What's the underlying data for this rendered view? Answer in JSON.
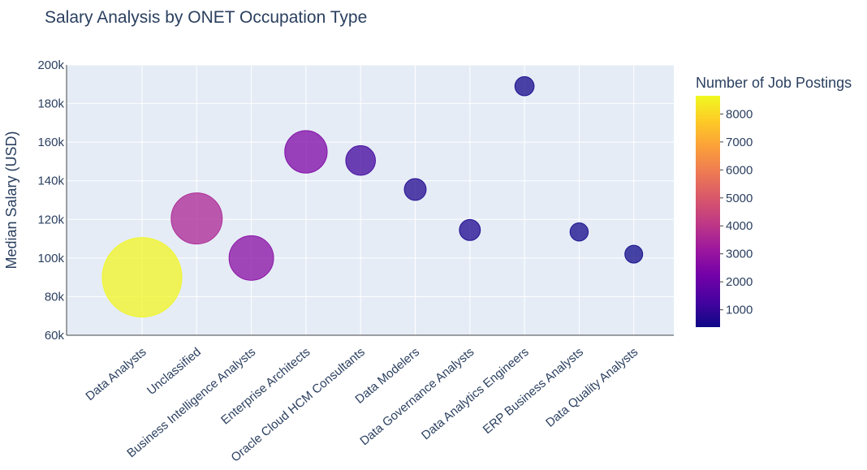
{
  "chart_data": {
    "type": "scatter",
    "title": "Salary Analysis by ONET Occupation Type",
    "ylabel": "Median Salary (USD)",
    "xlabel": "",
    "ylim": [
      60000,
      200000
    ],
    "y_ticks": [
      60000,
      80000,
      100000,
      120000,
      140000,
      160000,
      180000,
      200000
    ],
    "y_tick_labels": [
      "60k",
      "80k",
      "100k",
      "120k",
      "140k",
      "160k",
      "180k",
      "200k"
    ],
    "categories": [
      "Data Analysts",
      "Unclassified",
      "Business Intelligence Analysts",
      "Enterprise Architects",
      "Oracle Cloud HCM Consultants",
      "Data Modelers",
      "Data Governance Analysts",
      "Data Analytics Engineers",
      "ERP Business Analysts",
      "Data Quality Analysts"
    ],
    "values": [
      90000,
      120500,
      100000,
      155000,
      150500,
      135500,
      114500,
      189000,
      113500,
      102000
    ],
    "job_postings": [
      8600,
      3550,
      2700,
      2450,
      1200,
      650,
      600,
      500,
      450,
      400
    ],
    "colorbar": {
      "title": "Number of Job Postings",
      "min": 380,
      "max": 8650,
      "ticks": [
        1000,
        2000,
        3000,
        4000,
        5000,
        6000,
        7000,
        8000
      ],
      "tick_labels": [
        "1000",
        "2000",
        "3000",
        "4000",
        "5000",
        "6000",
        "7000",
        "8000"
      ],
      "colorscale": [
        "#0d0887",
        "#46039f",
        "#7201a8",
        "#9c179e",
        "#bd3786",
        "#d8576b",
        "#ed7953",
        "#fb9f3a",
        "#fdca26",
        "#f0f921"
      ]
    },
    "grid": true,
    "plot_background": "#e5ecf6"
  }
}
